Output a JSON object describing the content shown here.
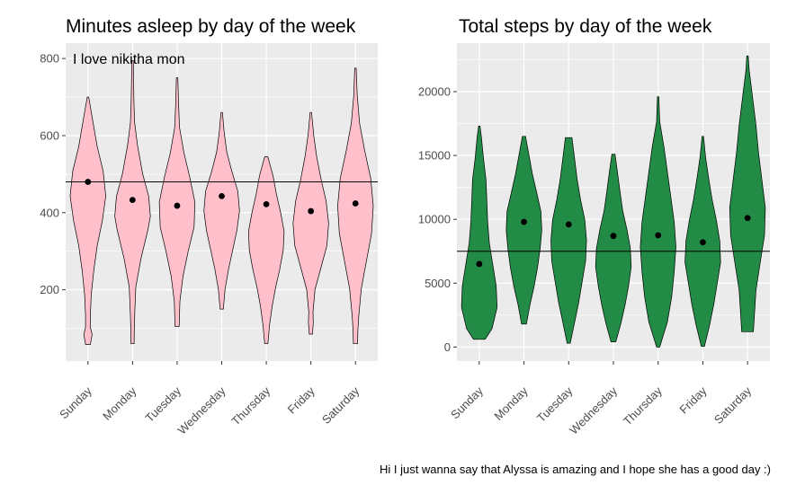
{
  "caption": "Hi I just wanna say that Alyssa is amazing and I hope she has a good day :)",
  "colors": {
    "panel_bg": "#ebebeb",
    "grid": "#ffffff",
    "sleep_fill": "#ffc0cb",
    "steps_fill": "#228b46",
    "outline": "#000000"
  },
  "chart_data": [
    {
      "type": "violin",
      "title": "Minutes asleep by day of the week",
      "xlabel": "",
      "ylabel": "",
      "annotation": "I love nikitha mon",
      "categories": [
        "Sunday",
        "Monday",
        "Tuesday",
        "Wednesday",
        "Thursday",
        "Friday",
        "Saturday"
      ],
      "y_ticks": [
        200,
        400,
        600,
        800
      ],
      "y_tick_labels": [
        "200",
        "400",
        "600",
        "800"
      ],
      "ylim": [
        15,
        840
      ],
      "reference_line": 480,
      "means": [
        480,
        433,
        418,
        443,
        422,
        404,
        424
      ],
      "ranges": [
        [
          58,
          700
        ],
        [
          60,
          795
        ],
        [
          105,
          750
        ],
        [
          150,
          660
        ],
        [
          60,
          545
        ],
        [
          85,
          660
        ],
        [
          60,
          775
        ]
      ],
      "fill": "#ffc0cb",
      "grid": true
    },
    {
      "type": "violin",
      "title": "Total steps by day of the week",
      "xlabel": "",
      "ylabel": "",
      "categories": [
        "Sunday",
        "Monday",
        "Tuesday",
        "Wednesday",
        "Thursday",
        "Friday",
        "Saturday"
      ],
      "y_ticks": [
        0,
        5000,
        10000,
        15000,
        20000
      ],
      "y_tick_labels": [
        "0",
        "5000",
        "10000",
        "15000",
        "20000"
      ],
      "ylim": [
        -1100,
        23800
      ],
      "reference_line": 7500,
      "means": [
        6500,
        9800,
        9600,
        8700,
        8750,
        8200,
        10100
      ],
      "ranges": [
        [
          600,
          17300
        ],
        [
          1800,
          16500
        ],
        [
          300,
          16400
        ],
        [
          400,
          15100
        ],
        [
          0,
          19600
        ],
        [
          50,
          16500
        ],
        [
          1200,
          22800
        ]
      ],
      "fill": "#228b46",
      "grid": true
    }
  ]
}
